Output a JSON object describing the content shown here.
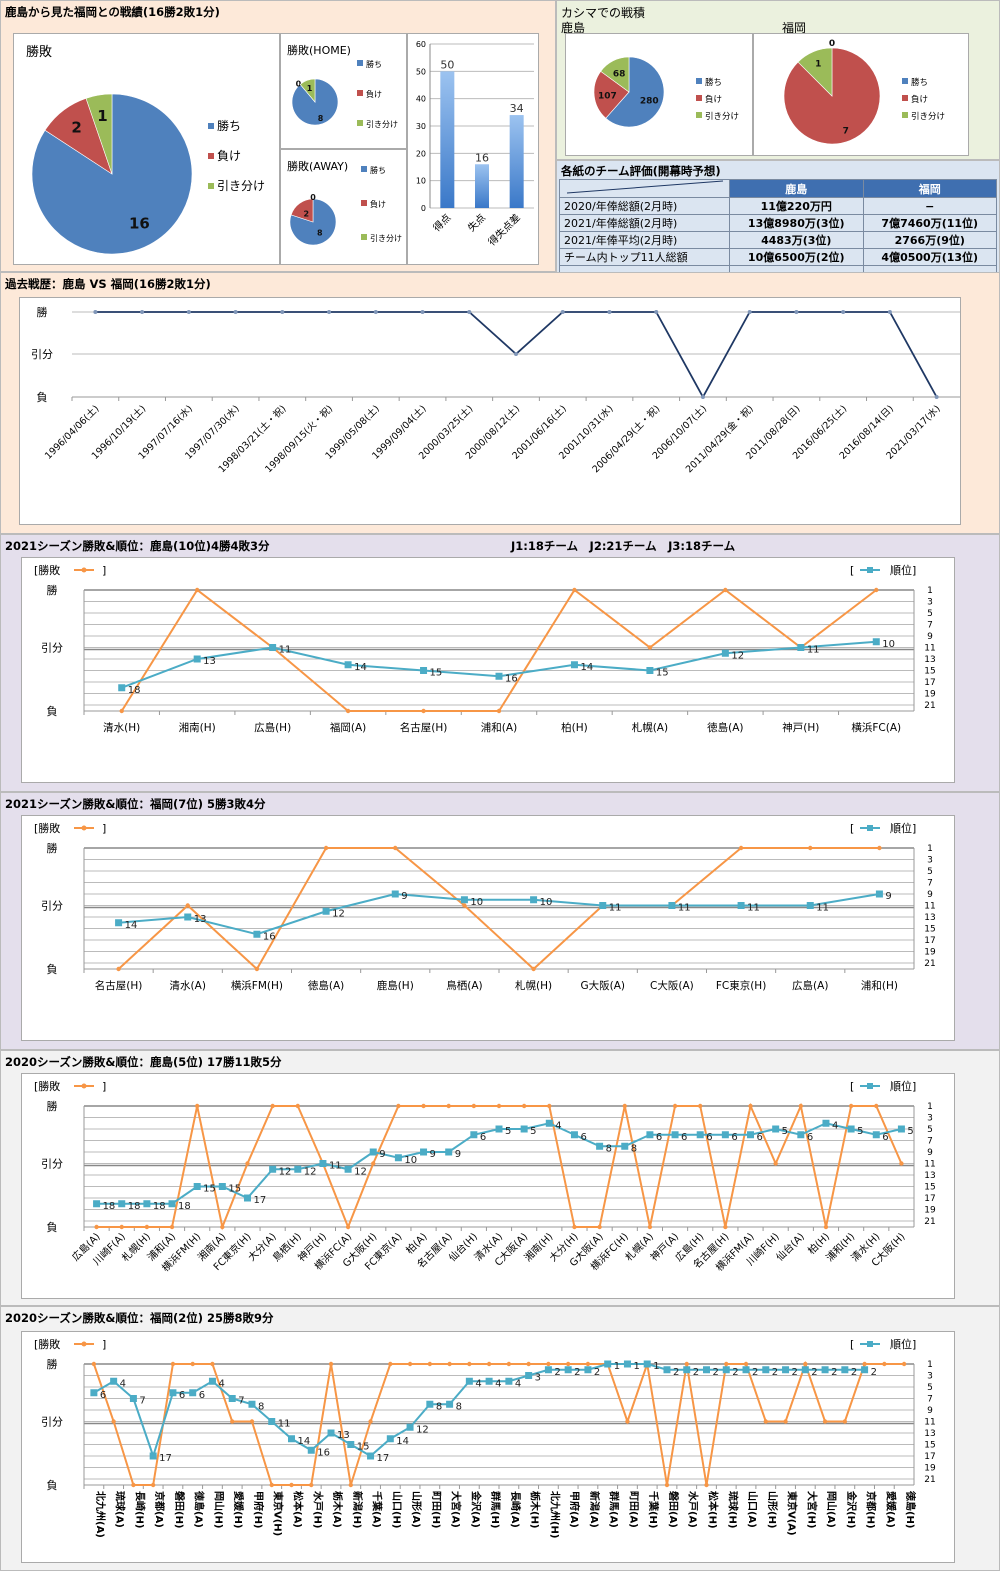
{
  "head_to_head": {
    "title": "鹿島から見た福岡との戦績(16勝2敗1分)",
    "legend": [
      "勝ち",
      "負け",
      "引き分け"
    ]
  },
  "kashima_home": {
    "title": "カシマでの戦積",
    "left_label": "鹿島",
    "right_label": "福岡"
  },
  "evaluation": {
    "title": "各紙のチーム評価(開幕時予想)",
    "columns": [
      "",
      "鹿島",
      "福岡"
    ],
    "rows": [
      [
        "2020/年俸総額(2月時)",
        "11億220万円",
        "−"
      ],
      [
        "2021/年俸総額(2月時)",
        "13億8980万(3位)",
        "7億7460万(11位)"
      ],
      [
        "2021/年俸平均(2月時)",
        "4483万(3位)",
        "2766万(9位)"
      ],
      [
        "チーム内トップ11人総額",
        "10億6500万(2位)",
        "4億0500万(13位)"
      ],
      [
        "",
        "",
        ""
      ]
    ]
  },
  "history": {
    "title": "過去戦歴：鹿島 VS 福岡(16勝2敗1分)"
  },
  "s2021_kashima": {
    "title": "2021シーズン勝敗&順位：鹿島(10位)4勝4敗3分",
    "note": "J1:18チーム　J2:21チーム　J3:18チーム"
  },
  "s2021_fukuoka": {
    "title": "2021シーズン勝敗&順位：福岡(7位) 5勝3敗4分"
  },
  "s2020_kashima": {
    "title": "2020シーズン勝敗&順位：鹿島(5位) 17勝11敗5分"
  },
  "s2020_fukuoka": {
    "title": "2020シーズン勝敗&順位：福岡(2位) 25勝8敗9分"
  },
  "labels": {
    "win": "勝",
    "draw": "引分",
    "loss": "負",
    "legend_result": "[勝敗",
    "legend_rank": "順位]",
    "bracket_open": "[",
    "bracket_close": "]"
  },
  "colors": {
    "win": "#4f81bd",
    "loss": "#c0504d",
    "draw": "#9bbb59",
    "result_line": "#f79646",
    "rank_line": "#4bacc6",
    "history_line": "#1f3864",
    "bg_peach": "#fde9d9",
    "bg_lavender": "#e4dfec",
    "bg_gray": "#f2f2f2",
    "bg_green": "#ebf1de"
  },
  "chart_data": [
    {
      "id": "pie_overall",
      "type": "pie",
      "title": "勝敗",
      "categories": [
        "勝ち",
        "負け",
        "引き分け"
      ],
      "values": [
        16,
        2,
        1
      ]
    },
    {
      "id": "pie_home",
      "type": "pie",
      "title": "勝敗(HOME)",
      "categories": [
        "勝ち",
        "負け",
        "引き分け"
      ],
      "values": [
        8,
        0,
        1
      ]
    },
    {
      "id": "pie_away",
      "type": "pie",
      "title": "勝敗(AWAY)",
      "categories": [
        "勝ち",
        "負け",
        "引き分け"
      ],
      "values": [
        8,
        2,
        0
      ]
    },
    {
      "id": "bar_goals",
      "type": "bar",
      "title": "",
      "categories": [
        "得点",
        "失点",
        "得失点差"
      ],
      "values": [
        50,
        16,
        34
      ],
      "ylim": [
        0,
        60
      ],
      "yticks": [
        0,
        10,
        20,
        30,
        40,
        50,
        60
      ]
    },
    {
      "id": "pie_kashima_home",
      "type": "pie",
      "title": "鹿島",
      "categories": [
        "勝ち",
        "負け",
        "引き分け"
      ],
      "values": [
        280,
        107,
        68
      ]
    },
    {
      "id": "pie_fukuoka_at_kashima",
      "type": "pie",
      "title": "福岡",
      "categories": [
        "勝ち",
        "負け",
        "引き分け"
      ],
      "values": [
        0,
        7,
        1
      ]
    },
    {
      "id": "history_line",
      "type": "line",
      "title": "過去戦歴：鹿島 VS 福岡(16勝2敗1分)",
      "yticks": [
        "勝",
        "引分",
        "負"
      ],
      "x": [
        "1996/04/06(土)",
        "1996/10/19(土)",
        "1997/07/16(水)",
        "1997/07/30(水)",
        "1998/03/21(土・祝)",
        "1998/09/15(火・祝)",
        "1999/05/08(土)",
        "1999/09/04(土)",
        "2000/03/25(土)",
        "2000/08/12(土)",
        "2001/06/16(土)",
        "2001/10/31(水)",
        "2006/04/29(土・祝)",
        "2006/10/07(土)",
        "2011/04/29(金・祝)",
        "2011/08/28(日)",
        "2016/06/25(土)",
        "2016/08/14(日)",
        "2021/03/17(水)"
      ],
      "results": [
        "W",
        "W",
        "W",
        "W",
        "W",
        "W",
        "W",
        "W",
        "W",
        "D",
        "W",
        "W",
        "W",
        "L",
        "W",
        "W",
        "W",
        "W",
        "L"
      ]
    },
    {
      "id": "s2021_kashima",
      "type": "line",
      "title": "2021シーズン勝敗&順位：鹿島(10位)4勝4敗3分",
      "rank_axis": [
        1,
        21
      ],
      "rank_ticks": [
        1,
        3,
        5,
        7,
        9,
        11,
        13,
        15,
        17,
        19,
        21
      ],
      "x": [
        "清水(H)",
        "湘南(H)",
        "広島(H)",
        "福岡(A)",
        "名古屋(H)",
        "浦和(A)",
        "柏(H)",
        "札幌(A)",
        "徳島(A)",
        "神戸(H)",
        "横浜FC(A)"
      ],
      "series": [
        {
          "name": "勝敗",
          "values": [
            "L",
            "W",
            "D",
            "L",
            "L",
            "L",
            "W",
            "D",
            "W",
            "D",
            "W"
          ]
        },
        {
          "name": "順位",
          "values": [
            18,
            13,
            11,
            14,
            15,
            16,
            14,
            15,
            12,
            11,
            10
          ]
        }
      ]
    },
    {
      "id": "s2021_fukuoka",
      "type": "line",
      "title": "2021シーズン勝敗&順位：福岡(7位) 5勝3敗4分",
      "rank_axis": [
        1,
        21
      ],
      "rank_ticks": [
        1,
        3,
        5,
        7,
        9,
        11,
        13,
        15,
        17,
        19,
        21
      ],
      "x": [
        "名古屋(H)",
        "清水(A)",
        "横浜FM(H)",
        "徳島(A)",
        "鹿島(H)",
        "鳥栖(A)",
        "札幌(H)",
        "G大阪(A)",
        "C大阪(A)",
        "FC東京(H)",
        "広島(A)",
        "浦和(H)"
      ],
      "series": [
        {
          "name": "勝敗",
          "values": [
            "L",
            "D",
            "L",
            "W",
            "W",
            "D",
            "L",
            "D",
            "D",
            "W",
            "W",
            "W"
          ]
        },
        {
          "name": "順位",
          "values": [
            14,
            13,
            16,
            12,
            9,
            10,
            10,
            11,
            11,
            11,
            11,
            9
          ]
        }
      ]
    },
    {
      "id": "s2020_kashima",
      "type": "line",
      "title": "2020シーズン勝敗&順位：鹿島(5位) 17勝11敗5分",
      "rank_axis": [
        1,
        21
      ],
      "rank_ticks": [
        1,
        3,
        5,
        7,
        9,
        11,
        13,
        15,
        17,
        19,
        21
      ],
      "x": [
        "広島(A)",
        "川崎F(A)",
        "札幌(H)",
        "浦和(A)",
        "横浜FM(H)",
        "湘南(A)",
        "FC東京(H)",
        "大分(A)",
        "鳥栖(H)",
        "神戸(H)",
        "横浜FC(A)",
        "G大阪(H)",
        "FC東京(A)",
        "柏(A)",
        "名古屋(A)",
        "仙台(H)",
        "清水(A)",
        "C大阪(A)",
        "湘南(H)",
        "大分(H)",
        "G大阪(A)",
        "横浜FC(H)",
        "札幌(A)",
        "神戸(A)",
        "広島(H)",
        "名古屋(H)",
        "横浜FM(A)",
        "川崎F(H)",
        "仙台(A)",
        "柏(H)",
        "浦和(H)",
        "清水(H)",
        "C大阪(H)"
      ],
      "series": [
        {
          "name": "勝敗",
          "values": [
            "L",
            "L",
            "L",
            "L",
            "W",
            "L",
            "D",
            "W",
            "W",
            "D",
            "L",
            "D",
            "W",
            "W",
            "W",
            "W",
            "W",
            "W",
            "W",
            "L",
            "L",
            "W",
            "L",
            "W",
            "W",
            "L",
            "W",
            "D",
            "W",
            "L",
            "W",
            "W",
            "D"
          ]
        },
        {
          "name": "順位",
          "values": [
            18,
            18,
            18,
            18,
            15,
            15,
            17,
            12,
            12,
            11,
            12,
            9,
            10,
            9,
            9,
            6,
            5,
            5,
            4,
            6,
            8,
            8,
            6,
            6,
            6,
            6,
            6,
            5,
            6,
            4,
            5,
            6,
            5
          ]
        }
      ]
    },
    {
      "id": "s2020_fukuoka",
      "type": "line",
      "title": "2020シーズン勝敗&順位：福岡(2位) 25勝8敗9分",
      "rank_axis": [
        1,
        21
      ],
      "rank_ticks": [
        1,
        3,
        5,
        7,
        9,
        11,
        13,
        15,
        17,
        19,
        21
      ],
      "x": [
        "北九州(A)",
        "琉球(A)",
        "長崎(H)",
        "京都(A)",
        "磐田(H)",
        "徳島(A)",
        "岡山(H)",
        "愛媛(H)",
        "甲府(H)",
        "東京V(H)",
        "松本(A)",
        "水戸(H)",
        "栃木(A)",
        "新潟(H)",
        "千葉(A)",
        "山口(H)",
        "山形(A)",
        "町田(H)",
        "大宮(A)",
        "金沢(A)",
        "群馬(H)",
        "長崎(A)",
        "栃木(H)",
        "北九州(H)",
        "甲府(A)",
        "新潟(A)",
        "群馬(A)",
        "町田(A)",
        "千葉(H)",
        "磐田(A)",
        "水戸(A)",
        "松本(H)",
        "琉球(H)",
        "山口(A)",
        "山形(H)",
        "東京V(A)",
        "大宮(H)",
        "岡山(A)",
        "金沢(H)",
        "京都(H)",
        "愛媛(A)",
        "徳島(H)"
      ],
      "series": [
        {
          "name": "勝敗",
          "values": [
            "W",
            "D",
            "L",
            "L",
            "W",
            "W",
            "W",
            "D",
            "D",
            "L",
            "L",
            "L",
            "W",
            "L",
            "D",
            "W",
            "W",
            "W",
            "W",
            "W",
            "W",
            "W",
            "W",
            "W",
            "W",
            "W",
            "W",
            "D",
            "W",
            "L",
            "W",
            "L",
            "W",
            "W",
            "D",
            "D",
            "W",
            "D",
            "D",
            "W",
            "W",
            "W"
          ]
        },
        {
          "name": "順位",
          "values": [
            6,
            4,
            7,
            17,
            6,
            6,
            4,
            7,
            8,
            11,
            14,
            16,
            13,
            15,
            17,
            14,
            12,
            8,
            8,
            4,
            4,
            4,
            3,
            2,
            2,
            2,
            1,
            1,
            1,
            2,
            2,
            2,
            2,
            2,
            2,
            2,
            2,
            2,
            2,
            2,
            null,
            null
          ]
        }
      ]
    }
  ]
}
